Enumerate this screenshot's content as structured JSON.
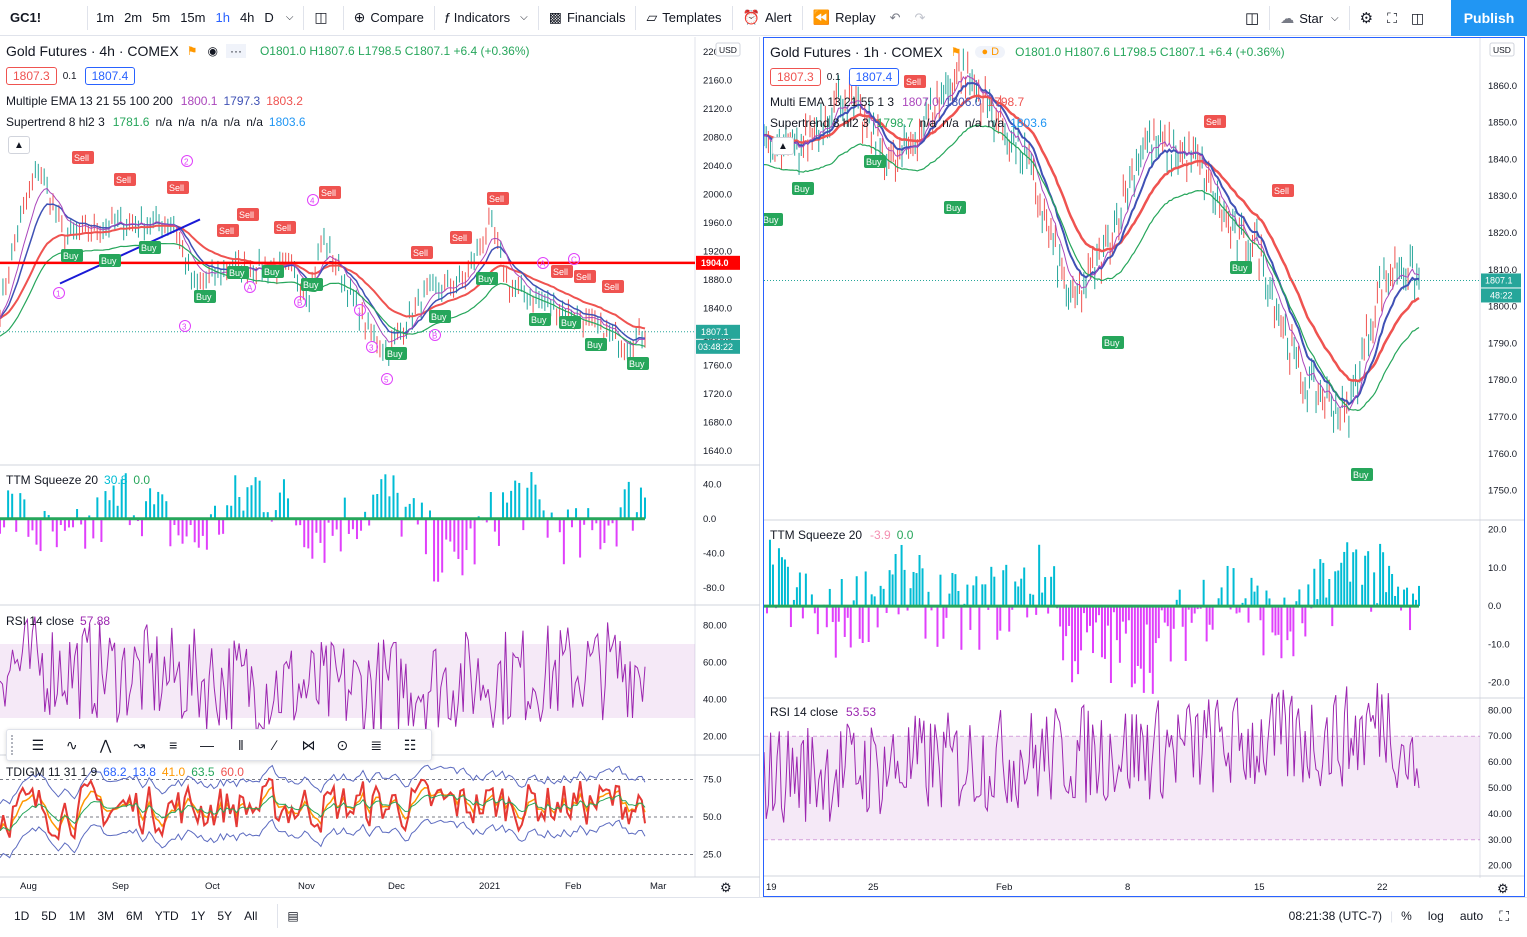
{
  "topbar": {
    "symbol": "GC1!",
    "intervals": [
      "1m",
      "2m",
      "5m",
      "15m",
      "1h",
      "4h",
      "D"
    ],
    "active_interval": "1h",
    "compare": "Compare",
    "indicators": "Indicators",
    "financials": "Financials",
    "templates": "Templates",
    "alert": "Alert",
    "replay": "Replay",
    "star": "Star",
    "publish": "Publish"
  },
  "left_chart": {
    "title": "Gold Futures · 4h · COMEX",
    "ohlc": "O1801.0 H1807.6 L1798.5 C1807.1 +6.4 (+0.36%)",
    "bid": "1807.3",
    "spread": "0.1",
    "ask": "1807.4",
    "currency": "USD",
    "ema_label": "Multiple EMA 13 21 55 100 200",
    "ema_vals": [
      "1800.1",
      "1797.3",
      "1803.2"
    ],
    "st_label": "Supertrend 8 hl2 3",
    "st_vals": [
      "1781.6",
      "n/a",
      "n/a",
      "n/a",
      "n/a",
      "n/a",
      "1803.6"
    ],
    "price_axis": [
      "2200.0",
      "2160.0",
      "2120.0",
      "2080.0",
      "2040.0",
      "2000.0",
      "1960.0",
      "1920.0",
      "1880.0",
      "1840.0",
      "1800.0",
      "1760.0",
      "1720.0",
      "1680.0",
      "1640.0"
    ],
    "hline_label": "1904.0",
    "last_price": "1807.1",
    "countdown": "03:48:22",
    "ttm_label": "TTM Squeeze 20",
    "ttm_vals": [
      "30.8",
      "0.0"
    ],
    "ttm_axis": [
      "40.0",
      "0.0",
      "-40.0",
      "-80.0"
    ],
    "rsi_label": "RSI 14 close",
    "rsi_val": "57.88",
    "rsi_axis": [
      "80.00",
      "60.00",
      "40.00",
      "20.00"
    ],
    "tdi_label": "TDIGM 11 31 1 9",
    "tdi_vals": [
      "68.2",
      "13.8",
      "41.0",
      "63.5",
      "60.0"
    ],
    "tdi_axis": [
      "75.0",
      "50.0",
      "25.0"
    ],
    "time_axis": [
      "Aug",
      "Sep",
      "Oct",
      "Nov",
      "Dec",
      "2021",
      "Feb",
      "Mar"
    ],
    "signals_buy": "Buy",
    "signals_sell": "Sell"
  },
  "right_chart": {
    "title": "Gold Futures · 1h · COMEX",
    "ohlc": "O1801.0 H1807.6 L1798.5 C1807.1 +6.4 (+0.36%)",
    "bid": "1807.3",
    "spread": "0.1",
    "ask": "1807.4",
    "currency": "USD",
    "ema_label": "Multi EMA 13 21 55 1 3",
    "ema_vals": [
      "1807.0",
      "1806.0",
      "1798.7"
    ],
    "st_label": "Supertrend 8 hl2 3",
    "st_vals": [
      "1798.7",
      "n/a",
      "n/a",
      "n/a",
      "n/a",
      "1803.6"
    ],
    "price_axis": [
      "1860.0",
      "1850.0",
      "1840.0",
      "1830.0",
      "1820.0",
      "1810.0",
      "1800.0",
      "1790.0",
      "1780.0",
      "1770.0",
      "1760.0",
      "1750.0"
    ],
    "last_price": "1807.1",
    "countdown": "48:22",
    "ttm_label": "TTM Squeeze 20",
    "ttm_vals": [
      "-3.9",
      "0.0"
    ],
    "ttm_axis": [
      "20.0",
      "10.0",
      "0.0",
      "-10.0",
      "-20.0"
    ],
    "rsi_label": "RSI 14 close",
    "rsi_val": "53.53",
    "rsi_axis": [
      "80.00",
      "70.00",
      "60.00",
      "50.00",
      "40.00",
      "30.00",
      "20.00"
    ],
    "time_axis": [
      "19",
      "25",
      "Feb",
      "8",
      "15",
      "22"
    ]
  },
  "bottombar": {
    "ranges": [
      "1D",
      "5D",
      "1M",
      "3M",
      "6M",
      "YTD",
      "1Y",
      "5Y",
      "All"
    ],
    "clock": "08:21:38 (UTC-7)",
    "percent": "%",
    "log": "log",
    "auto": "auto"
  },
  "colors": {
    "accent": "#2962ff",
    "buy": "#26a65b",
    "sell": "#ef5350",
    "cyan": "#00bcd4",
    "magenta": "#e040fb",
    "rsi": "#9c27b0"
  }
}
